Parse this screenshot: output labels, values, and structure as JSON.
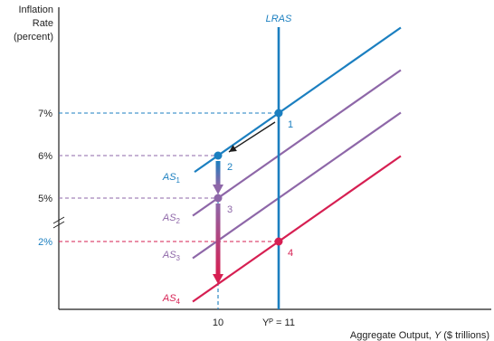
{
  "chart_data": {
    "type": "line",
    "title": "",
    "ylabel_lines": [
      "Inflation",
      "Rate",
      "(percent)"
    ],
    "xlabel_prefix": "Aggregate Output, ",
    "xlabel_var": "Y",
    "xlabel_suffix": " ($ trillions)",
    "y_ticks": [
      {
        "label": "7%",
        "value": 7,
        "color": "#1f1f1f"
      },
      {
        "label": "6%",
        "value": 6,
        "color": "#1f1f1f"
      },
      {
        "label": "5%",
        "value": 5,
        "color": "#1f1f1f"
      },
      {
        "label": "2%",
        "value": 2,
        "color": "#1b7fc0"
      }
    ],
    "y_axis_break": true,
    "x_ticks": [
      {
        "label": "10",
        "value": 10
      },
      {
        "label": "Yᴾ = 11",
        "value": 11
      }
    ],
    "lras": {
      "name": "LRAS",
      "x": 11,
      "color": "#1b7fc0"
    },
    "series": [
      {
        "name": "AS",
        "sub": "1",
        "color": "#1b7fc0",
        "passes_through": {
          "x": 11,
          "y": 7
        }
      },
      {
        "name": "AS",
        "sub": "2",
        "color": "#8e67a8",
        "passes_through": {
          "x": 11,
          "y": 6
        }
      },
      {
        "name": "AS",
        "sub": "3",
        "color": "#8e67a8",
        "passes_through": {
          "x": 11,
          "y": 5
        }
      },
      {
        "name": "AS",
        "sub": "4",
        "color": "#d61f52",
        "passes_through": {
          "x": 11,
          "y": 2
        }
      }
    ],
    "points": [
      {
        "label": "1",
        "x": 11,
        "y": 7,
        "color": "#1b7fc0"
      },
      {
        "label": "2",
        "x": 10,
        "y": 6,
        "color": "#1b7fc0"
      },
      {
        "label": "3",
        "x": 10,
        "y": 5,
        "color": "#8e67a8"
      },
      {
        "label": "4",
        "x": 11,
        "y": 2,
        "color": "#d61f52"
      }
    ],
    "arrows": [
      {
        "from": {
          "x": 11,
          "y": 7
        },
        "to": {
          "x": 10,
          "y": 6
        },
        "color": "#1f1f1f"
      },
      {
        "from": {
          "x": 10,
          "y": 6
        },
        "to": {
          "x": 10,
          "y": 5
        },
        "color": "#8e67a8"
      },
      {
        "from": {
          "x": 10,
          "y": 5
        },
        "to": {
          "x": 10,
          "y": 2
        },
        "color": "#d61f52"
      }
    ],
    "grid": false,
    "legend": "none"
  }
}
